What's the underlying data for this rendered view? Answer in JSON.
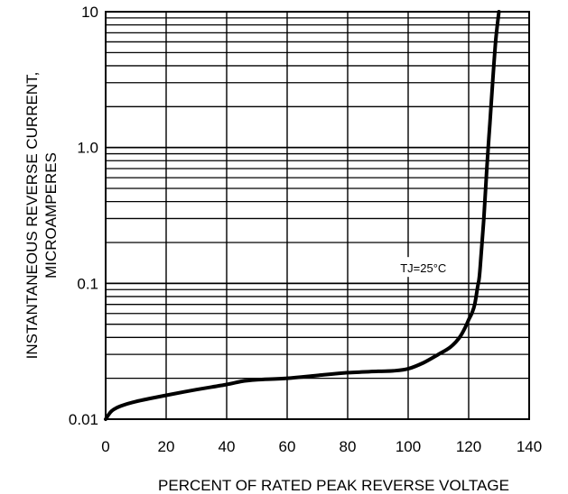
{
  "chart_data": {
    "type": "line",
    "title": "",
    "xlabel": "PERCENT OF RATED PEAK REVERSE VOLTAGE",
    "ylabel": [
      "INSTANTANEOUS REVERSE CURRENT,",
      "MICROAMPERES"
    ],
    "xlim": [
      0,
      140
    ],
    "ylim": [
      0.01,
      10
    ],
    "y_scale": "log",
    "grid": true,
    "x_ticks": [
      0,
      20,
      40,
      60,
      80,
      100,
      120,
      140
    ],
    "x_tick_labels": [
      "0",
      "20",
      "40",
      "60",
      "80",
      "100",
      "120",
      "140"
    ],
    "y_ticks": [
      0.01,
      0.1,
      1.0,
      10
    ],
    "y_tick_labels": [
      "0.01",
      "0.1",
      "1.0",
      "10"
    ],
    "annotation": {
      "text": "TJ=25°C",
      "x": 105,
      "y": 0.13
    },
    "series": [
      {
        "x": [
          0,
          2,
          5,
          10,
          20,
          30,
          40,
          45,
          50,
          60,
          70,
          80,
          90,
          95,
          100,
          105,
          110,
          114,
          117,
          119,
          120,
          121,
          122,
          123,
          123.5,
          124,
          125,
          126,
          127,
          128,
          129,
          130
        ],
        "y": [
          0.01,
          0.0115,
          0.0125,
          0.0135,
          0.015,
          0.0165,
          0.018,
          0.019,
          0.0195,
          0.02,
          0.021,
          0.022,
          0.0225,
          0.0227,
          0.0235,
          0.026,
          0.03,
          0.034,
          0.04,
          0.048,
          0.054,
          0.06,
          0.07,
          0.095,
          0.11,
          0.15,
          0.3,
          0.7,
          1.5,
          3.2,
          6.3,
          10.0
        ]
      }
    ]
  }
}
